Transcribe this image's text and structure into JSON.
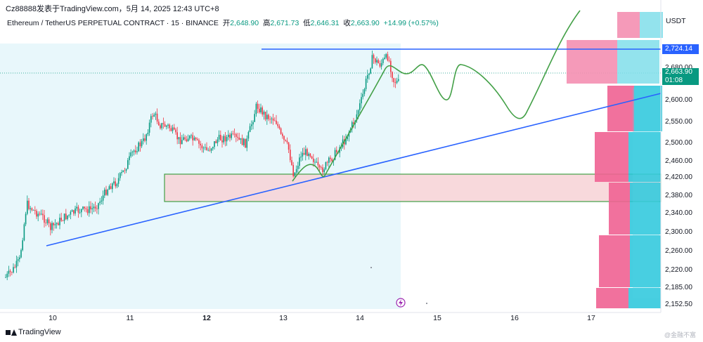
{
  "header": {
    "author_line": "Cz88888发表于TradingView.com，5月 14, 2025 12:43 UTC+8",
    "symbol": "Ethereum / TetherUS PERPETUAL CONTRACT · 15 · BINANCE",
    "ohlc": {
      "open_label": "开",
      "open": "2,648.90",
      "high_label": "高",
      "high": "2,671.73",
      "low_label": "低",
      "low": "2,646.31",
      "close_label": "收",
      "close": "2,663.90",
      "change": "+14.99 (+0.57%)"
    }
  },
  "price_axis": {
    "unit": "USDT",
    "levels": [
      "2,680.00",
      "2,600.00",
      "2,550.00",
      "2,500.00",
      "2,460.00",
      "2,420.00",
      "2,380.00",
      "2,340.00",
      "2,300.00",
      "2,260.00",
      "2,220.00",
      "2,185.00",
      "2,152.50"
    ],
    "resistance_tag": "2,724.14",
    "current_price_tag": "2,663.90",
    "countdown": "01:08"
  },
  "time_axis": {
    "labels": [
      "10",
      "11",
      "12",
      "13",
      "14",
      "15",
      "16",
      "17"
    ]
  },
  "colors": {
    "up": "#089981",
    "down": "#f23645",
    "trendline": "#2962ff",
    "projection": "#43a047",
    "demand_zone_fill": "#f5c6cc",
    "session_bg": "#e8f7fb",
    "volume_profile_pink": "#f06292",
    "volume_profile_cyan": "#26c6da"
  },
  "footer": {
    "brand": "TradingView",
    "watermark": "@金融不富"
  }
}
